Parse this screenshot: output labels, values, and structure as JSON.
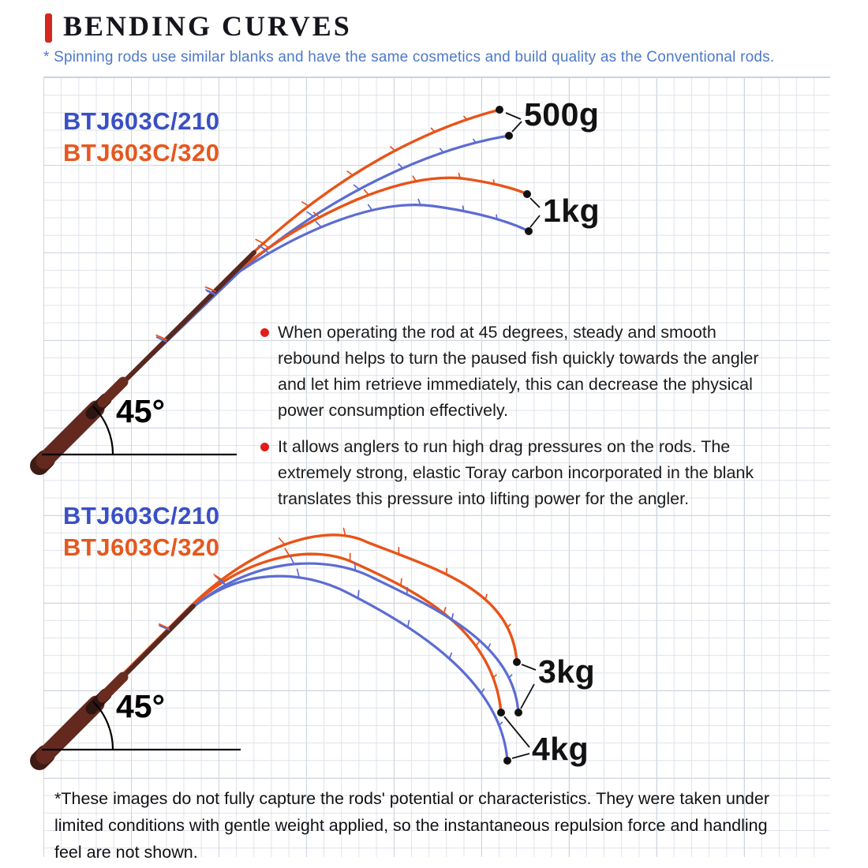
{
  "header": {
    "title": "BENDING CURVES",
    "subtitle": "* Spinning rods use similar blanks and have the same cosmetics and build quality as the Conventional rods.",
    "accent_color": "#d3281f"
  },
  "colors": {
    "label_blue": "#3a4fc4",
    "label_orange": "#e5581f",
    "curve_blue": "#5c6cd2",
    "curve_orange": "#e85318",
    "bullet_red": "#e21b1b",
    "grid_line": "#dee3ea",
    "handle_brown": "#5f2a20"
  },
  "top_diagram": {
    "angle_label": "45°",
    "models": [
      {
        "label": "BTJ603C/210",
        "color": "#3a4fc4"
      },
      {
        "label": "BTJ603C/320",
        "color": "#e5581f"
      }
    ],
    "weights": [
      {
        "label": "500g"
      },
      {
        "label": "1kg"
      }
    ]
  },
  "bottom_diagram": {
    "angle_label": "45°",
    "models": [
      {
        "label": "BTJ603C/210",
        "color": "#3a4fc4"
      },
      {
        "label": "BTJ603C/320",
        "color": "#e5581f"
      }
    ],
    "weights": [
      {
        "label": "3kg"
      },
      {
        "label": "4kg"
      }
    ]
  },
  "bullets": [
    {
      "text": "When operating the rod at 45 degrees, steady and smooth\nrebound helps to turn the paused fish quickly towards the angler\nand let him retrieve immediately, this can decrease the physical\npower consumption effectively."
    },
    {
      "text": "It allows anglers to run high drag pressures on the rods. The\nextremely strong, elastic Toray carbon incorporated in the blank\ntranslates this pressure into lifting power for the angler."
    }
  ],
  "footnote": {
    "text": "*These images do not fully capture the rods' potential or characteristics. They were taken under\nlimited conditions with gentle weight applied, so the instantaneous repulsion force and handling\nfeel are not shown."
  }
}
